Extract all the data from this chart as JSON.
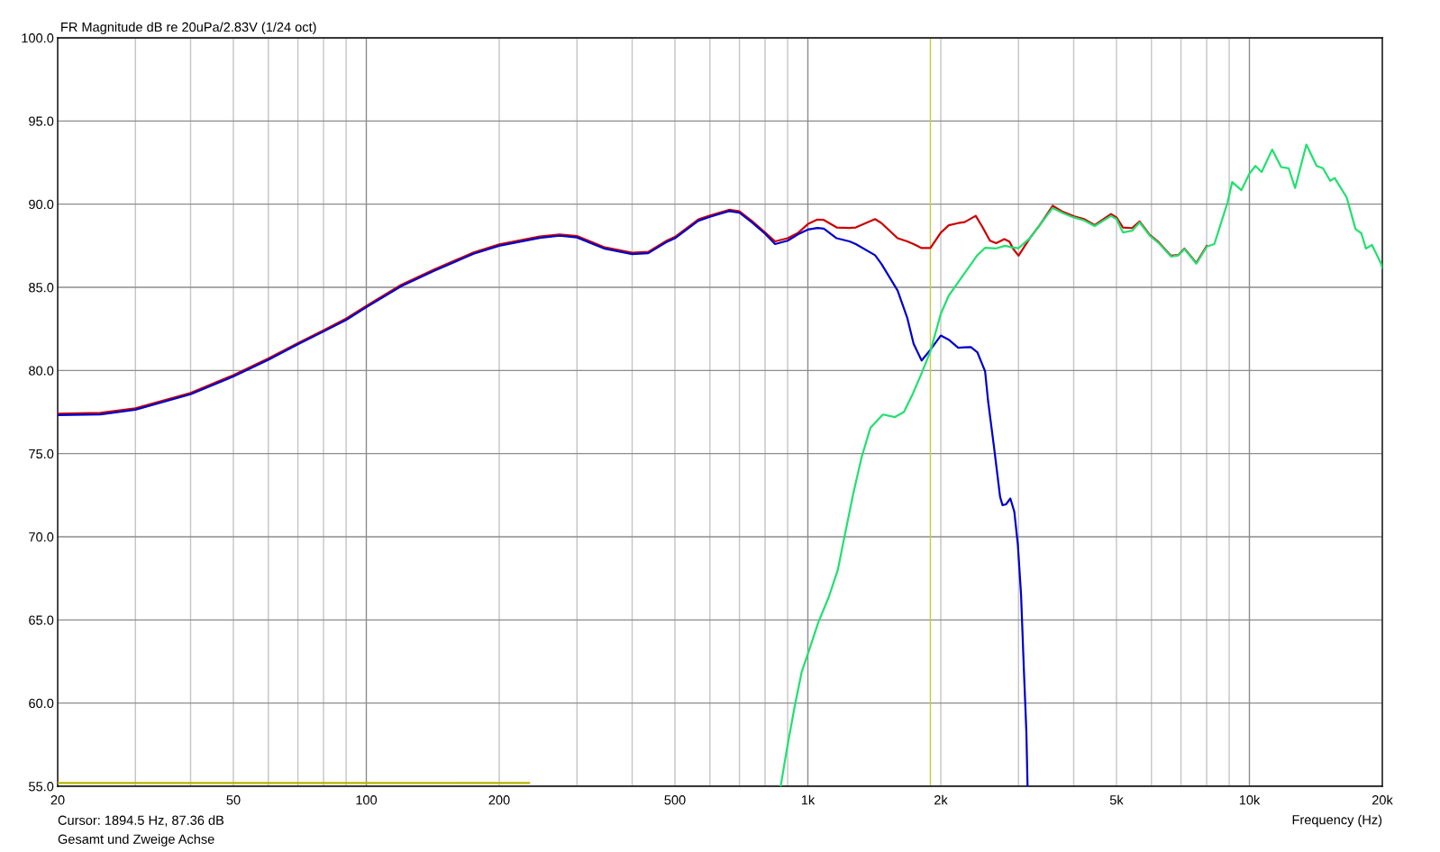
{
  "chart_data": {
    "type": "line",
    "title": "FR Magnitude dB re 20uPa/2.83V (1/24 oct)",
    "xlabel": "Frequency (Hz)",
    "annotations": [
      "Cursor: 1894.5 Hz, 87.36 dB",
      "Gesamt und Zweige Achse"
    ],
    "log": "x",
    "grid": true,
    "xlim": [
      20,
      20000
    ],
    "ylim": [
      55,
      100
    ],
    "xticks": [
      20,
      {
        "value": 30,
        "label": null
      },
      {
        "value": 40,
        "label": null
      },
      50,
      {
        "value": 60,
        "label": null
      },
      {
        "value": 70,
        "label": null
      },
      {
        "value": 80,
        "label": null
      },
      {
        "value": 90,
        "label": null
      },
      100,
      200,
      {
        "value": 300,
        "label": null
      },
      {
        "value": 400,
        "label": null
      },
      500,
      {
        "value": 600,
        "label": null
      },
      {
        "value": 700,
        "label": null
      },
      {
        "value": 800,
        "label": null
      },
      {
        "value": 900,
        "label": null
      },
      {
        "value": 1000,
        "label": "1k"
      },
      {
        "value": 2000,
        "label": "2k"
      },
      {
        "value": 3000,
        "label": null
      },
      {
        "value": 4000,
        "label": null
      },
      {
        "value": 5000,
        "label": "5k"
      },
      {
        "value": 6000,
        "label": null
      },
      {
        "value": 7000,
        "label": null
      },
      {
        "value": 8000,
        "label": null
      },
      {
        "value": 9000,
        "label": null
      },
      {
        "value": 10000,
        "label": "10k"
      },
      {
        "value": 20000,
        "label": "20k"
      }
    ],
    "yticks": [
      {
        "value": 55,
        "label": "55.0"
      },
      {
        "value": 60,
        "label": "60.0"
      },
      {
        "value": 65,
        "label": "65.0"
      },
      {
        "value": 70,
        "label": "70.0"
      },
      {
        "value": 75,
        "label": "75.0"
      },
      {
        "value": 80,
        "label": "80.0"
      },
      {
        "value": 85,
        "label": "85.0"
      },
      {
        "value": 90,
        "label": "90.0"
      },
      {
        "value": 95,
        "label": "95.0"
      },
      {
        "value": 100,
        "label": "100.0"
      }
    ],
    "ref_lines": [
      {
        "axis": "x",
        "value": 1894.5,
        "color": "#c8c846"
      }
    ],
    "series": [
      {
        "color": "#b4b400",
        "x": [
          20,
          234
        ],
        "values": [
          55.2,
          55.2
        ]
      },
      {
        "color": "#cc0000",
        "x": [
          20,
          25,
          30,
          40,
          50,
          60,
          70,
          80,
          90,
          100,
          120,
          142,
          175,
          200,
          247,
          274,
          300,
          347,
          400,
          435,
          480,
          500,
          565,
          600,
          663,
          700,
          747,
          800,
          843,
          900,
          951,
          1000,
          1051,
          1087,
          1162,
          1242,
          1284,
          1420,
          1468,
          1597,
          1679,
          1736,
          1810,
          1894.5,
          2000,
          2085,
          2190,
          2265,
          2400,
          2480,
          2585,
          2670,
          2786,
          2860,
          2920,
          3000,
          3183,
          3338,
          3584,
          3786,
          4000,
          4223,
          4462,
          4859,
          5000,
          5171,
          5423,
          5642,
          5950,
          6237,
          6643,
          6907,
          7125,
          7584,
          8007
        ],
        "values": [
          77.4,
          77.45,
          77.72,
          78.65,
          79.72,
          80.72,
          81.65,
          82.42,
          83.12,
          83.88,
          85.15,
          86.05,
          87.1,
          87.58,
          88.05,
          88.18,
          88.08,
          87.4,
          87.08,
          87.13,
          87.82,
          88.03,
          89.08,
          89.32,
          89.66,
          89.57,
          88.99,
          88.3,
          87.76,
          87.95,
          88.28,
          88.8,
          89.07,
          89.05,
          88.6,
          88.57,
          88.6,
          89.1,
          88.86,
          87.95,
          87.76,
          87.6,
          87.36,
          87.36,
          88.28,
          88.73,
          88.86,
          88.92,
          89.3,
          88.67,
          87.8,
          87.65,
          87.9,
          87.75,
          87.3,
          86.9,
          87.96,
          88.68,
          89.9,
          89.53,
          89.28,
          89.1,
          88.74,
          89.4,
          89.2,
          88.6,
          88.56,
          88.96,
          88.15,
          87.7,
          86.9,
          86.95,
          87.33,
          86.47,
          87.5
        ]
      },
      {
        "color": "#0000cc",
        "x": [
          20,
          25,
          30,
          40,
          50,
          60,
          70,
          80,
          90,
          100,
          120,
          142,
          175,
          200,
          247,
          274,
          300,
          347,
          400,
          435,
          480,
          500,
          565,
          600,
          663,
          700,
          747,
          800,
          843,
          900,
          951,
          1000,
          1051,
          1087,
          1162,
          1242,
          1284,
          1420,
          1468,
          1597,
          1679,
          1736,
          1810,
          1894.5,
          2000,
          2085,
          2190,
          2265,
          2340,
          2420,
          2480,
          2520,
          2560,
          2640,
          2725,
          2760,
          2810,
          2875,
          2935,
          2990,
          3040,
          3085,
          3125,
          3145
        ],
        "values": [
          77.32,
          77.36,
          77.64,
          78.57,
          79.64,
          80.64,
          81.57,
          82.34,
          83.04,
          83.8,
          85.07,
          85.97,
          87.02,
          87.5,
          87.97,
          88.1,
          88.0,
          87.32,
          87.0,
          87.05,
          87.74,
          87.95,
          89.0,
          89.24,
          89.58,
          89.49,
          88.91,
          88.22,
          87.6,
          87.8,
          88.19,
          88.47,
          88.57,
          88.53,
          87.95,
          87.76,
          87.6,
          86.93,
          86.4,
          84.8,
          83.17,
          81.6,
          80.6,
          81.24,
          82.1,
          81.85,
          81.37,
          81.39,
          81.4,
          81.1,
          80.4,
          79.95,
          78.15,
          75.4,
          72.4,
          71.9,
          71.95,
          72.3,
          71.5,
          69.5,
          66.5,
          62.0,
          58.3,
          55.0
        ]
      },
      {
        "color": "#22e070",
        "x": [
          868,
          896,
          932,
          969,
          1000,
          1056,
          1116,
          1169,
          1206,
          1265,
          1324,
          1386,
          1479,
          1575,
          1650,
          1729,
          1811,
          1894.5,
          2000,
          2085,
          2190,
          2420,
          2520,
          2670,
          2800,
          2897,
          3000,
          3183,
          3338,
          3584,
          3786,
          4000,
          4223,
          4462,
          4859,
          5000,
          5171,
          5423,
          5642,
          5950,
          6237,
          6643,
          6907,
          7125,
          7584,
          8007,
          8330,
          8930,
          9140,
          9588,
          10000,
          10320,
          10660,
          11260,
          11800,
          12270,
          12690,
          13460,
          14200,
          14670,
          15240,
          15600,
          16610,
          17390,
          17930,
          18360,
          18950,
          19860,
          20000
        ],
        "values": [
          55.0,
          57.2,
          59.7,
          61.9,
          62.95,
          64.85,
          66.4,
          68.0,
          69.8,
          72.5,
          74.8,
          76.55,
          77.35,
          77.2,
          77.5,
          78.6,
          79.85,
          81.15,
          83.4,
          84.5,
          85.3,
          86.93,
          87.37,
          87.34,
          87.5,
          87.4,
          87.35,
          87.96,
          88.68,
          89.77,
          89.45,
          89.2,
          89.02,
          88.68,
          89.3,
          89.1,
          88.3,
          88.4,
          88.9,
          88.1,
          87.65,
          86.85,
          86.92,
          87.3,
          86.42,
          87.45,
          87.6,
          90.13,
          91.33,
          90.84,
          91.84,
          92.3,
          91.93,
          93.28,
          92.23,
          92.16,
          90.97,
          93.58,
          92.3,
          92.16,
          91.4,
          91.57,
          90.4,
          88.5,
          88.25,
          87.33,
          87.55,
          86.43,
          86.16
        ]
      }
    ]
  }
}
